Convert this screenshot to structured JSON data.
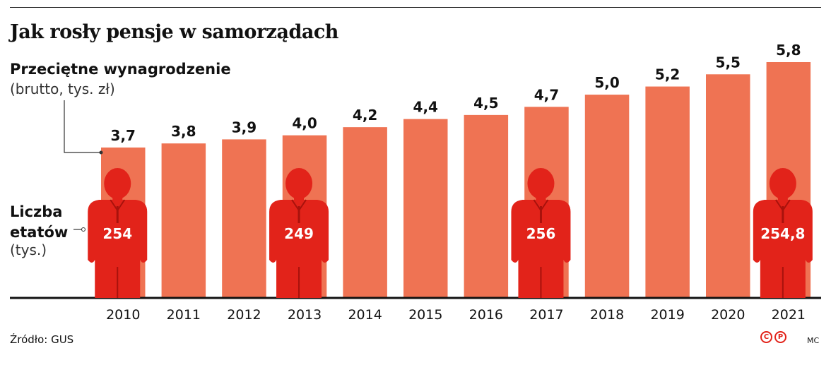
{
  "title": "Jak rosły pensje w samorządach",
  "legend": {
    "title": "Przeciętne wynagrodzenie",
    "subtitle": "(brutto, tys. zł)"
  },
  "headcount_label": {
    "line1": "Liczba",
    "line2": "etatów",
    "unit": "(tys.)"
  },
  "source": "Źródło: GUS",
  "author": "MC",
  "logo_letters": [
    "C",
    "P"
  ],
  "colors": {
    "bar": "#ef7353",
    "figure": "#e2231a",
    "axis": "#111111"
  },
  "chart_data": {
    "type": "bar",
    "categories": [
      "2010",
      "2011",
      "2012",
      "2013",
      "2014",
      "2015",
      "2016",
      "2017",
      "2018",
      "2019",
      "2020",
      "2021"
    ],
    "series": [
      {
        "values": [
          3.7,
          3.8,
          3.9,
          4.0,
          4.2,
          4.4,
          4.5,
          4.7,
          5.0,
          5.2,
          5.5,
          5.8
        ],
        "labels": [
          "3,7",
          "3,8",
          "3,9",
          "4,0",
          "4,2",
          "4,4",
          "4,5",
          "4,7",
          "5,0",
          "5,2",
          "5,5",
          "5,8"
        ]
      }
    ],
    "headcount": [
      {
        "year": "2010",
        "value": 254,
        "label": "254"
      },
      {
        "year": "2013",
        "value": 249,
        "label": "249"
      },
      {
        "year": "2017",
        "value": 256,
        "label": "256"
      },
      {
        "year": "2021",
        "value": 254.8,
        "label": "254,8"
      }
    ],
    "ylim": [
      0,
      5.8
    ],
    "grid": false,
    "xlabel": "",
    "ylabel": ""
  }
}
